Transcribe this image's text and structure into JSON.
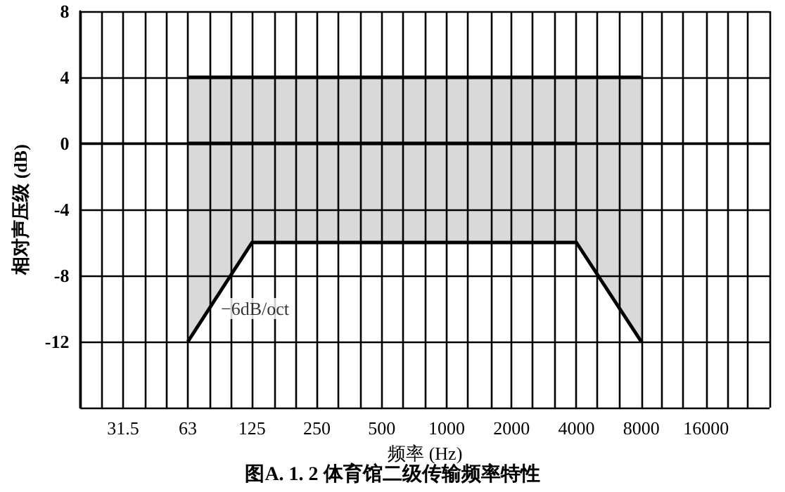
{
  "chart_data": {
    "type": "line",
    "title": "图A. 1. 2 体育馆二级传输频率特性",
    "xlabel": "频率 (Hz)",
    "ylabel": "相对声压级 (dB)",
    "log": "x",
    "xlim": [
      20,
      31500
    ],
    "xticks": [
      {
        "value": 20,
        "label": null
      },
      {
        "value": 25,
        "label": null
      },
      31.5,
      {
        "value": 40,
        "label": null
      },
      {
        "value": 50,
        "label": null
      },
      63,
      {
        "value": 80,
        "label": null
      },
      {
        "value": 100,
        "label": null
      },
      125,
      {
        "value": 160,
        "label": null
      },
      {
        "value": 200,
        "label": null
      },
      250,
      {
        "value": 315,
        "label": null
      },
      {
        "value": 400,
        "label": null
      },
      500,
      {
        "value": 630,
        "label": null
      },
      {
        "value": 800,
        "label": null
      },
      1000,
      {
        "value": 1250,
        "label": null
      },
      {
        "value": 1600,
        "label": null
      },
      2000,
      {
        "value": 2500,
        "label": null
      },
      {
        "value": 3150,
        "label": null
      },
      4000,
      {
        "value": 5000,
        "label": null
      },
      {
        "value": 6300,
        "label": null
      },
      8000,
      {
        "value": 10000,
        "label": null
      },
      {
        "value": 12500,
        "label": null
      },
      16000,
      {
        "value": 20000,
        "label": null
      },
      {
        "value": 25000,
        "label": null
      },
      {
        "value": 31500,
        "label": null
      }
    ],
    "ylim": [
      -16,
      8
    ],
    "yticks": [
      {
        "value": -16,
        "label": null
      },
      -12,
      -8,
      -4,
      0,
      4,
      8
    ],
    "grid": true,
    "marker": "none",
    "line_style": "solid",
    "series": [
      {
        "color": "#000000",
        "x": [
          63,
          125,
          4000,
          8000
        ],
        "values": [
          0,
          0,
          0,
          null
        ],
        "lower": [
          -12,
          -6,
          -6,
          -12
        ],
        "upper": [
          4,
          4,
          4,
          4
        ]
      },
      {
        "color": "#000000",
        "x": [
          63,
          125,
          4000,
          8000
        ],
        "values": [
          4,
          4,
          4,
          4
        ]
      },
      {
        "color": "#000000",
        "x": [
          63,
          125,
          4000,
          8000
        ],
        "values": [
          -12,
          -6,
          -6,
          -12
        ]
      }
    ],
    "annotations": [
      {
        "text": "−6dB/oct",
        "x": 87,
        "y": -10
      }
    ]
  }
}
